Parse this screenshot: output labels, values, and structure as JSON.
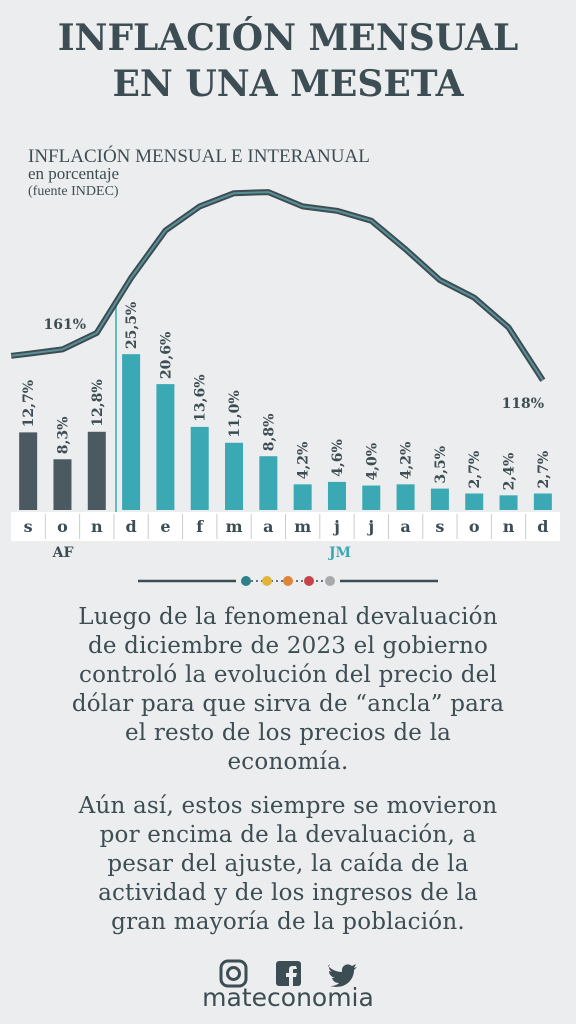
{
  "header": {
    "title": [
      "INFLACIÓN MENSUAL",
      "EN UNA MESETA"
    ]
  },
  "chart_data": {
    "type": "bar",
    "title": "INFLACIÓN MENSUAL E INTERANUAL",
    "subtitle": "en porcentaje",
    "source": "(fuente INDEC)",
    "categories": [
      "s",
      "o",
      "n",
      "d",
      "e",
      "f",
      "m",
      "a",
      "m",
      "j",
      "j",
      "a",
      "s",
      "o",
      "n",
      "d"
    ],
    "series": [
      {
        "type": "bar",
        "values": [
          12.7,
          8.3,
          12.8,
          25.5,
          20.6,
          13.6,
          11.0,
          8.8,
          4.2,
          4.6,
          4.0,
          4.2,
          3.5,
          2.7,
          2.4,
          2.7
        ],
        "value_labels": [
          "12,7%",
          "8,3%",
          "12,8%",
          "25,5%",
          "20,6%",
          "13,6%",
          "11,0%",
          "8,8%",
          "4,2%",
          "4,6%",
          "4,0%",
          "4,2%",
          "3,5%",
          "2,7%",
          "2,4%",
          "2,7%"
        ],
        "colors": [
          "#4b5961",
          "#4b5961",
          "#4b5961",
          "#3aa9b4",
          "#3aa9b4",
          "#3aa9b4",
          "#3aa9b4",
          "#3aa9b4",
          "#3aa9b4",
          "#3aa9b4",
          "#3aa9b4",
          "#3aa9b4",
          "#3aa9b4",
          "#3aa9b4",
          "#3aa9b4",
          "#3aa9b4"
        ]
      },
      {
        "type": "line",
        "axis": "y2",
        "color": "#3d4d54",
        "values": [
          142,
          146,
          161,
          211,
          254,
          276,
          288,
          289,
          276,
          272,
          263,
          237,
          209,
          193,
          166,
          118
        ],
        "value_labels": [
          null,
          null,
          "161%",
          null,
          null,
          null,
          null,
          null,
          null,
          null,
          null,
          null,
          null,
          null,
          null,
          "118%"
        ]
      }
    ],
    "ylim": [
      0,
      54
    ],
    "y2lim": [
      0,
      300
    ],
    "annotations": [
      {
        "text": "AF",
        "color": "#3d4d54"
      },
      {
        "text": "JM",
        "color": "#3aa9b4"
      }
    ]
  },
  "paragraphs": [
    [
      "Luego de la fenomenal devaluación",
      "de diciembre de 2023 el gobierno",
      "controló la evolución del precio del",
      "dólar para que sirva de “ancla” para",
      "el resto de los precios de la",
      "economía."
    ],
    [
      "Aún así, estos siempre se movieron",
      "por encima de la devaluación, a",
      "pesar del ajuste, la caída de la",
      "actividad y de los ingresos de la",
      "gran mayoría de la población."
    ]
  ],
  "footer": {
    "brand": "mateconomia"
  }
}
